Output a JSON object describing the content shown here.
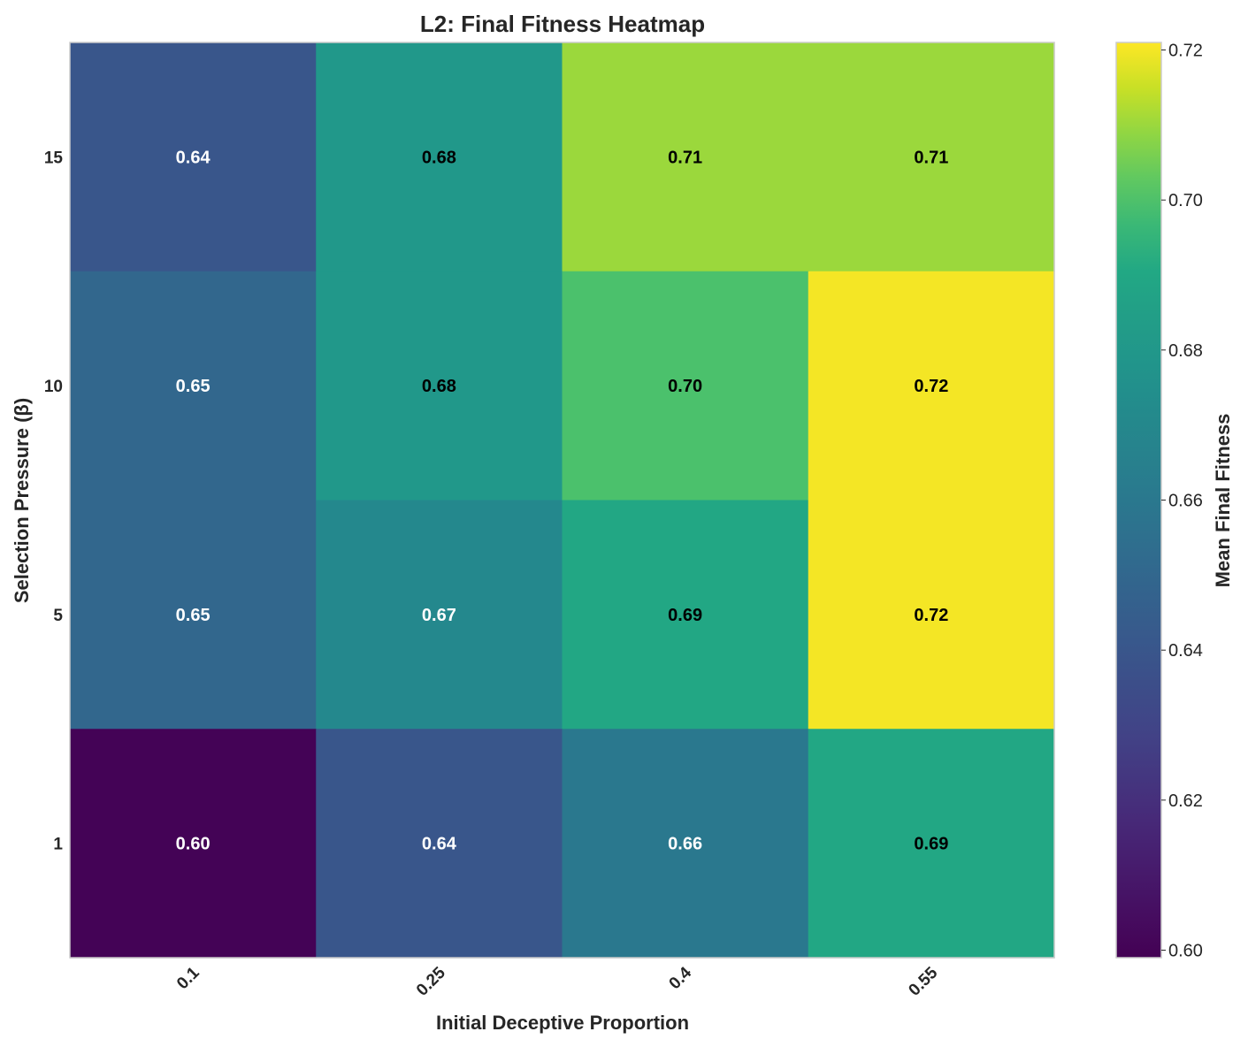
{
  "chart_data": {
    "type": "heatmap",
    "title": "L2: Final Fitness Heatmap",
    "xlabel": "Initial Deceptive Proportion",
    "ylabel": "Selection Pressure (β)",
    "x_categories": [
      "0.1",
      "0.25",
      "0.4",
      "0.55"
    ],
    "y_categories": [
      "15",
      "10",
      "5",
      "1"
    ],
    "values": [
      [
        0.64,
        0.68,
        0.71,
        0.71
      ],
      [
        0.65,
        0.68,
        0.7,
        0.72
      ],
      [
        0.65,
        0.67,
        0.69,
        0.72
      ],
      [
        0.6,
        0.64,
        0.66,
        0.69
      ]
    ],
    "value_labels": [
      [
        "0.64",
        "0.68",
        "0.71",
        "0.71"
      ],
      [
        "0.65",
        "0.68",
        "0.70",
        "0.72"
      ],
      [
        "0.65",
        "0.67",
        "0.69",
        "0.72"
      ],
      [
        "0.60",
        "0.64",
        "0.66",
        "0.69"
      ]
    ],
    "colormap": "viridis",
    "colorbar": {
      "label": "Mean Final Fitness",
      "vmin": 0.599,
      "vmax": 0.721,
      "ticks": [
        0.6,
        0.62,
        0.64,
        0.66,
        0.68,
        0.7,
        0.72
      ],
      "tick_labels": [
        "0.60",
        "0.62",
        "0.64",
        "0.66",
        "0.68",
        "0.70",
        "0.72"
      ]
    },
    "text_colors": {
      "dark_cell": "#ffffff",
      "light_cell": "#000000"
    },
    "frame_color": "#cccccc"
  }
}
